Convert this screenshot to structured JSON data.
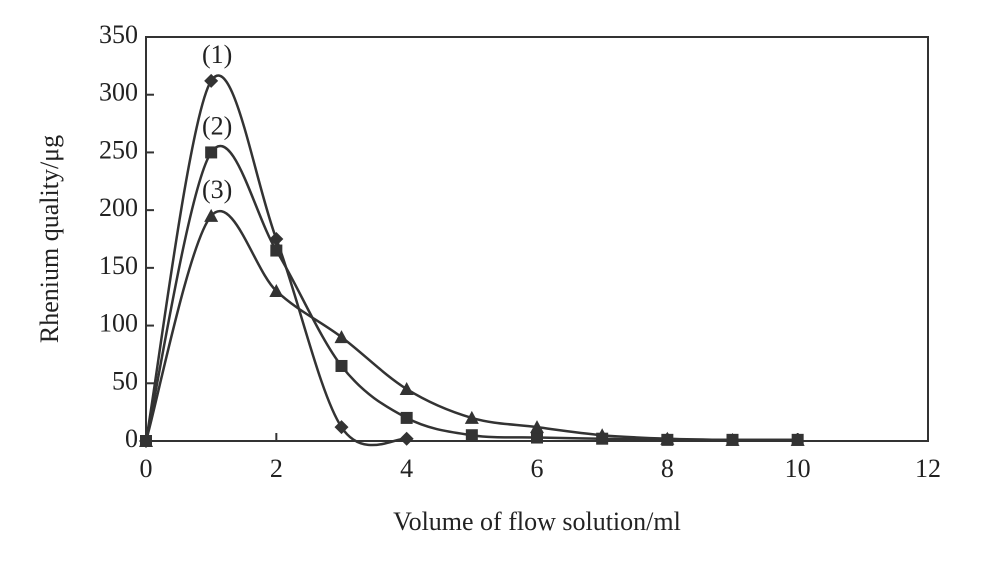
{
  "chart_data": {
    "type": "line",
    "x_label": "Volume of flow solution/ml",
    "y_label": "Rhenium quality/μg",
    "x": [
      0,
      1,
      2,
      3,
      4,
      5,
      6,
      7,
      8,
      9,
      10
    ],
    "series": [
      {
        "name": "(1)",
        "color": "#333333",
        "marker": "diamond",
        "values": [
          0,
          312,
          175,
          12,
          2,
          null,
          null,
          null,
          null,
          null,
          null
        ]
      },
      {
        "name": "(2)",
        "color": "#333333",
        "marker": "square",
        "values": [
          0,
          250,
          165,
          65,
          20,
          5,
          3,
          2,
          1,
          1,
          1
        ]
      },
      {
        "name": "(3)",
        "color": "#333333",
        "marker": "triangle",
        "values": [
          0,
          195,
          130,
          90,
          45,
          20,
          12,
          5,
          2,
          1,
          1
        ]
      }
    ],
    "xlim": [
      0,
      12
    ],
    "xticks": [
      0,
      2,
      4,
      6,
      8,
      10,
      12
    ],
    "ylim": [
      0,
      350
    ],
    "yticks": [
      0,
      50,
      100,
      150,
      200,
      250,
      300,
      350
    ],
    "grid": false
  }
}
